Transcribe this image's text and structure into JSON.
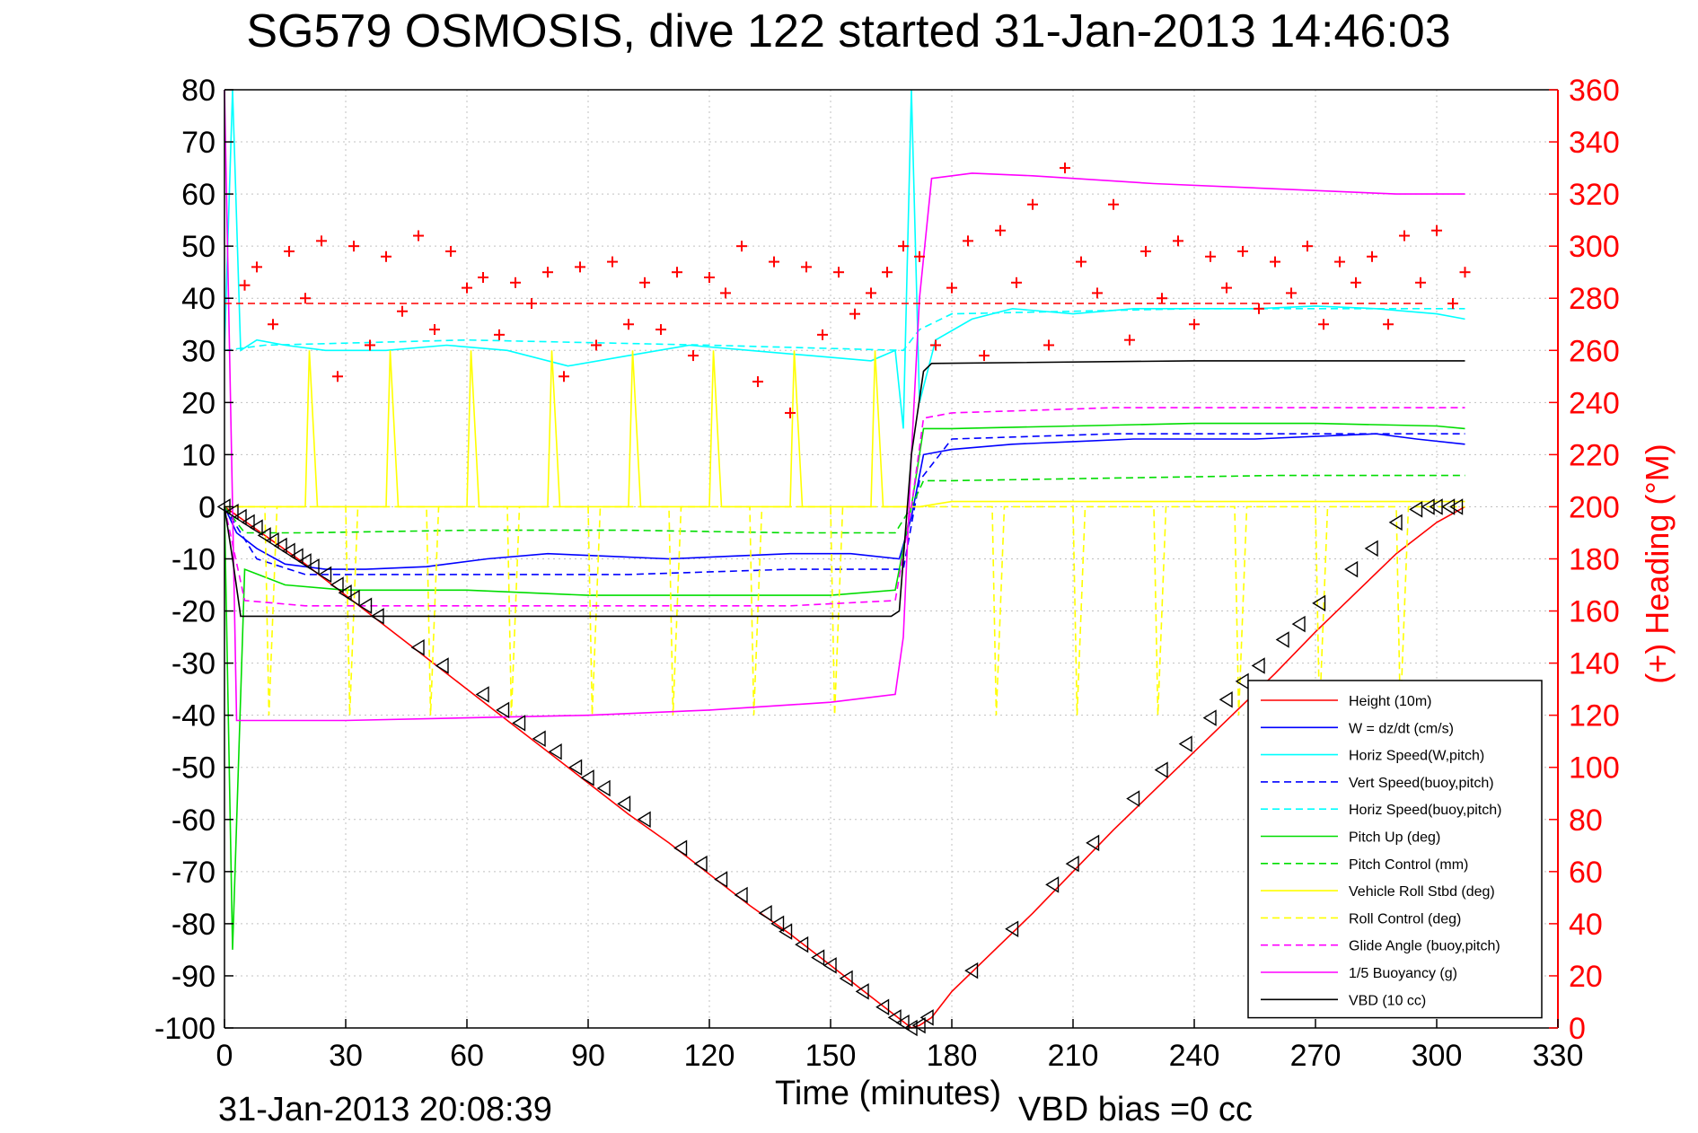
{
  "title": "SG579 OSMOSIS, dive 122 started 31-Jan-2013 14:46:03",
  "footer": {
    "timestamp": "31-Jan-2013 20:08:39",
    "vbd_bias": "VBD bias =0 cc"
  },
  "colors": {
    "heading_axis": "#ff0000",
    "grid": "#c0c0c0",
    "axis": "#000000"
  },
  "chart_data": {
    "type": "line",
    "title": "SG579 OSMOSIS, dive 122 started 31-Jan-2013 14:46:03",
    "xlabel": "Time (minutes)",
    "ylabel": "",
    "y2label": "(+) Heading (°M)",
    "xlim": [
      0,
      330
    ],
    "ylim": [
      -100,
      80
    ],
    "y2lim": [
      0,
      360
    ],
    "x_ticks": [
      "0",
      "30",
      "60",
      "90",
      "120",
      "150",
      "180",
      "210",
      "240",
      "270",
      "300",
      "330"
    ],
    "y_ticks": [
      "80",
      "70",
      "60",
      "50",
      "40",
      "30",
      "20",
      "10",
      "0",
      "-10",
      "-20",
      "-30",
      "-40",
      "-50",
      "-60",
      "-70",
      "-80",
      "-90",
      "-100"
    ],
    "y2_ticks": [
      "360",
      "340",
      "320",
      "300",
      "280",
      "260",
      "240",
      "220",
      "200",
      "180",
      "160",
      "140",
      "120",
      "100",
      "80",
      "60",
      "40",
      "20",
      "0"
    ],
    "grid": true,
    "legend_position": "bottom-right",
    "series": [
      {
        "name": "Height (10m)",
        "color": "#ff0000",
        "style": "solid",
        "x": [
          0,
          10,
          20,
          30,
          40,
          50,
          60,
          70,
          80,
          90,
          100,
          110,
          120,
          130,
          140,
          150,
          160,
          165,
          170,
          172,
          175,
          180,
          190,
          200,
          210,
          220,
          230,
          240,
          250,
          260,
          270,
          280,
          290,
          300,
          307
        ],
        "y": [
          0,
          -5.5,
          -11,
          -17,
          -23,
          -29,
          -35,
          -41,
          -47,
          -53,
          -59,
          -64.5,
          -70.5,
          -76.5,
          -82,
          -88,
          -94,
          -97,
          -100,
          -99.5,
          -98,
          -93,
          -85.5,
          -78,
          -70,
          -62,
          -54.5,
          -47,
          -39.5,
          -32,
          -24,
          -16.5,
          -9,
          -3,
          0
        ]
      },
      {
        "name": "W = dz/dt (cm/s)",
        "color": "#0000ff",
        "style": "solid",
        "x": [
          0,
          3,
          8,
          15,
          25,
          35,
          50,
          65,
          80,
          95,
          110,
          125,
          140,
          155,
          167,
          170,
          173,
          180,
          195,
          210,
          225,
          240,
          255,
          270,
          285,
          295,
          307
        ],
        "y": [
          0,
          -5,
          -8,
          -11,
          -12,
          -12,
          -11.5,
          -10,
          -9,
          -9.5,
          -10,
          -9.5,
          -9,
          -9,
          -10,
          -2,
          10,
          11,
          12,
          12.5,
          13,
          13,
          13,
          13.5,
          14,
          13,
          12
        ]
      },
      {
        "name": "Horiz Speed(W,pitch)",
        "color": "#00ffff",
        "style": "solid",
        "x": [
          0,
          2,
          4,
          8,
          15,
          25,
          40,
          55,
          70,
          85,
          100,
          115,
          130,
          145,
          160,
          166,
          168,
          170,
          172,
          176,
          185,
          195,
          210,
          225,
          240,
          255,
          270,
          285,
          300,
          307
        ],
        "y": [
          30,
          80,
          30,
          32,
          31,
          30,
          30,
          31,
          30,
          27,
          29,
          31,
          30,
          29,
          28,
          30,
          15,
          80,
          20,
          32,
          36,
          38,
          37,
          38,
          38,
          38,
          38.5,
          38,
          37,
          36
        ]
      },
      {
        "name": "Vert Speed(buoy,pitch)",
        "color": "#0000ff",
        "style": "dashed",
        "x": [
          0,
          8,
          20,
          60,
          100,
          140,
          168,
          172,
          180,
          220,
          260,
          307
        ],
        "y": [
          0,
          -10,
          -13,
          -13,
          -13,
          -12,
          -12,
          5,
          13,
          14,
          14,
          14
        ]
      },
      {
        "name": "Horiz Speed(buoy,pitch)",
        "color": "#00ffff",
        "style": "dashed",
        "x": [
          0,
          10,
          60,
          120,
          168,
          172,
          180,
          240,
          307
        ],
        "y": [
          30,
          31,
          32,
          31,
          30,
          34,
          37,
          38,
          38
        ]
      },
      {
        "name": "Pitch Up (deg)",
        "color": "#00dd00",
        "style": "solid",
        "x": [
          0,
          2,
          5,
          15,
          30,
          60,
          90,
          120,
          150,
          166,
          170,
          173,
          180,
          210,
          240,
          270,
          300,
          307
        ],
        "y": [
          0,
          -85,
          -12,
          -15,
          -16,
          -16,
          -17,
          -17,
          -17,
          -16,
          0,
          15,
          15,
          15.5,
          16,
          16,
          15.5,
          15
        ]
      },
      {
        "name": "Pitch Control (mm)",
        "color": "#00dd00",
        "style": "dashed",
        "x": [
          0,
          5,
          20,
          60,
          100,
          140,
          166,
          170,
          173,
          180,
          220,
          260,
          307
        ],
        "y": [
          0,
          -5,
          -5,
          -4.5,
          -4.5,
          -5,
          -5,
          0,
          5,
          5,
          5.5,
          6,
          6
        ]
      },
      {
        "name": "Vehicle Roll Stbd (deg)",
        "color": "#ffff00",
        "style": "solid",
        "x": [
          0,
          5,
          10,
          20,
          21,
          23,
          40,
          41,
          43,
          60,
          61,
          63,
          80,
          81,
          83,
          100,
          101,
          103,
          120,
          121,
          123,
          140,
          141,
          143,
          160,
          161,
          163,
          168,
          172,
          180,
          220,
          260,
          307
        ],
        "y": [
          0,
          0,
          0,
          0,
          30,
          0,
          0,
          30,
          0,
          0,
          30,
          0,
          0,
          30,
          0,
          0,
          30,
          0,
          0,
          30,
          0,
          0,
          30,
          0,
          0,
          30,
          0,
          0,
          0,
          1,
          1,
          1,
          1
        ]
      },
      {
        "name": "Roll Control (deg)",
        "color": "#ffff00",
        "style": "dashed",
        "x": [
          0,
          10,
          11,
          13,
          30,
          31,
          33,
          50,
          51,
          53,
          70,
          71,
          73,
          90,
          91,
          93,
          110,
          111,
          113,
          130,
          131,
          133,
          150,
          151,
          153,
          170,
          190,
          191,
          193,
          210,
          211,
          213,
          230,
          231,
          233,
          250,
          251,
          253,
          270,
          271,
          273,
          290,
          291,
          293,
          307
        ],
        "y": [
          0,
          0,
          -40,
          0,
          0,
          -40,
          0,
          0,
          -40,
          0,
          0,
          -40,
          0,
          0,
          -40,
          0,
          0,
          -40,
          0,
          0,
          -40,
          0,
          0,
          -40,
          0,
          0,
          0,
          -40,
          0,
          0,
          -40,
          0,
          0,
          -40,
          0,
          0,
          -40,
          0,
          0,
          -40,
          0,
          0,
          -40,
          0,
          0
        ]
      },
      {
        "name": "Glide Angle (buoy,pitch)",
        "color": "#ff00ff",
        "style": "dashed",
        "x": [
          0,
          5,
          20,
          60,
          100,
          140,
          166,
          170,
          173,
          180,
          220,
          260,
          307
        ],
        "y": [
          0,
          -18,
          -19,
          -19,
          -19,
          -19,
          -18,
          0,
          17,
          18,
          19,
          19,
          19
        ]
      },
      {
        "name": "1/5 Buoyancy (g)",
        "color": "#ff00ff",
        "style": "solid",
        "x": [
          0,
          2,
          3,
          30,
          60,
          90,
          120,
          150,
          166,
          168,
          170,
          172,
          175,
          185,
          200,
          230,
          260,
          290,
          307
        ],
        "y": [
          80,
          0,
          -41,
          -41,
          -40.5,
          -40,
          -39,
          -37.5,
          -36,
          -25,
          10,
          40,
          63,
          64,
          63.5,
          62,
          61,
          60,
          60
        ]
      },
      {
        "name": "VBD (10 cc)",
        "color": "#000000",
        "style": "solid",
        "x": [
          0,
          2,
          4,
          100,
          165,
          167,
          170,
          173,
          175,
          240,
          307
        ],
        "y": [
          0,
          -10,
          -21,
          -21,
          -21,
          -20,
          10,
          26,
          27.5,
          28,
          28
        ]
      }
    ],
    "heading": {
      "name": "(+) Heading (°M)",
      "axis": "y2",
      "color": "#ff0000",
      "marker": "+",
      "target_heading": 278,
      "x": [
        5,
        8,
        12,
        16,
        20,
        24,
        28,
        32,
        36,
        40,
        44,
        48,
        52,
        56,
        60,
        64,
        68,
        72,
        76,
        80,
        84,
        88,
        92,
        96,
        100,
        104,
        108,
        112,
        116,
        120,
        124,
        128,
        132,
        136,
        140,
        144,
        148,
        152,
        156,
        160,
        164,
        168,
        172,
        176,
        180,
        184,
        188,
        192,
        196,
        200,
        204,
        208,
        212,
        216,
        220,
        224,
        228,
        232,
        236,
        240,
        244,
        248,
        252,
        256,
        260,
        264,
        268,
        272,
        276,
        280,
        284,
        288,
        292,
        296,
        300,
        304,
        307
      ],
      "y": [
        285,
        292,
        270,
        298,
        280,
        302,
        250,
        300,
        262,
        296,
        275,
        304,
        268,
        298,
        284,
        288,
        266,
        286,
        278,
        290,
        250,
        292,
        262,
        294,
        270,
        286,
        268,
        290,
        258,
        288,
        282,
        300,
        248,
        294,
        236,
        292,
        266,
        290,
        274,
        282,
        290,
        300,
        296,
        262,
        284,
        302,
        258,
        306,
        286,
        316,
        262,
        330,
        294,
        282,
        316,
        264,
        298,
        280,
        302,
        270,
        296,
        284,
        298,
        276,
        294,
        282,
        300,
        270,
        294,
        286,
        296,
        270,
        304,
        286,
        306,
        278,
        290
      ]
    },
    "depth_markers": {
      "series": "Height (10m)",
      "marker": "triangle-left",
      "x": [
        0,
        2,
        4,
        6,
        8,
        10,
        12,
        14,
        16,
        18,
        20,
        22,
        25,
        28,
        30,
        32,
        35,
        38,
        48,
        54,
        64,
        69,
        73,
        78,
        82,
        87,
        90,
        94,
        99,
        104,
        113,
        118,
        123,
        128,
        134,
        137,
        139,
        143,
        147,
        150,
        154,
        158,
        163,
        166,
        168,
        170,
        172,
        174,
        185,
        195,
        205,
        210,
        215,
        225,
        232,
        238,
        244,
        248,
        252,
        256,
        262,
        266,
        271,
        279,
        284,
        290,
        295,
        298,
        300,
        303,
        305
      ],
      "y": [
        0,
        -1,
        -2,
        -3,
        -4,
        -5.5,
        -6.5,
        -7.5,
        -8.5,
        -9.5,
        -10.5,
        -11.5,
        -13,
        -15,
        -16.5,
        -17.5,
        -19,
        -21,
        -27,
        -30.5,
        -36,
        -39,
        -41.5,
        -44.5,
        -47,
        -50,
        -52,
        -54,
        -57,
        -60,
        -65.5,
        -68.5,
        -71.5,
        -74.5,
        -78,
        -80,
        -81.5,
        -84,
        -86.5,
        -88,
        -90.5,
        -93,
        -96,
        -98,
        -99,
        -100,
        -99.5,
        -98,
        -89,
        -81,
        -72.5,
        -68.5,
        -64.5,
        -56,
        -50.5,
        -45.5,
        -40.5,
        -37,
        -33.5,
        -30.5,
        -25.5,
        -22.5,
        -18.5,
        -12,
        -8,
        -3,
        -0.5,
        0,
        0,
        0,
        0
      ]
    }
  }
}
